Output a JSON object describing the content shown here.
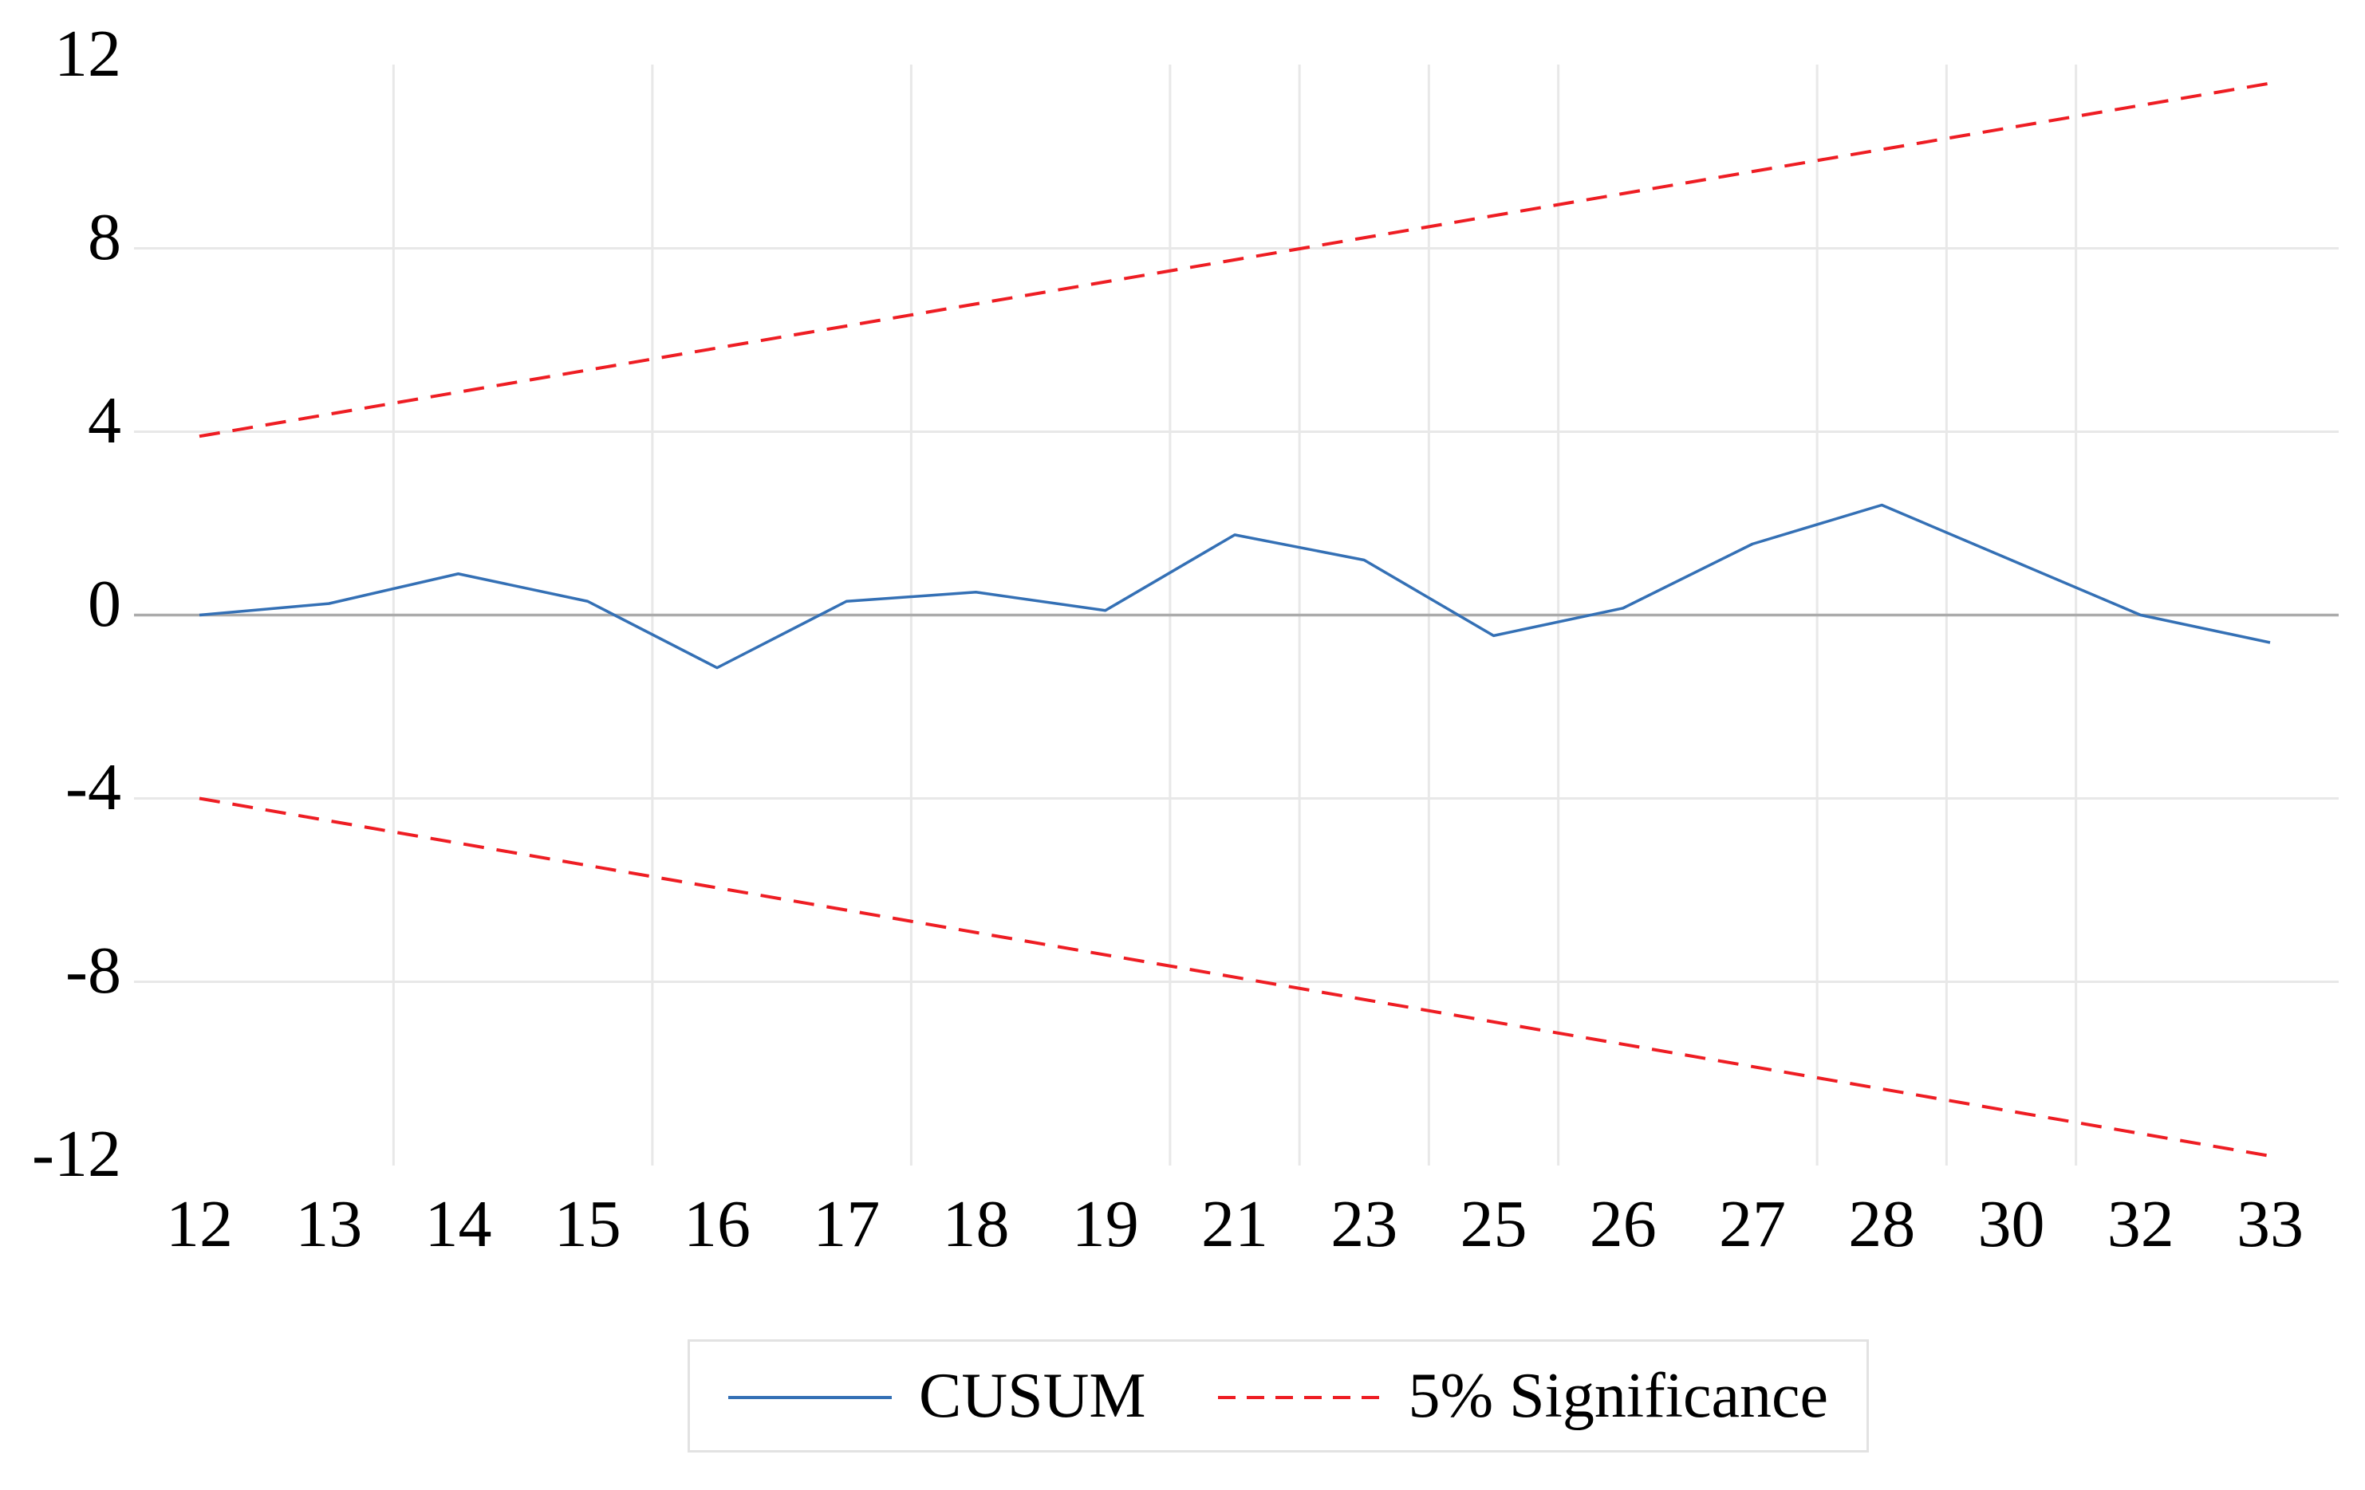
{
  "chart": {
    "y_tick_labels": [
      "12",
      "8",
      "4",
      "0",
      "-4",
      "-8",
      "-12"
    ],
    "x_tick_labels": [
      "12",
      "13",
      "14",
      "15",
      "16",
      "17",
      "18",
      "19",
      "21",
      "23",
      "25",
      "26",
      "27",
      "28",
      "30",
      "32",
      "33"
    ]
  },
  "legend": {
    "cusum_label": "CUSUM",
    "significance_label": "5% Significance"
  },
  "chart_data": {
    "type": "line",
    "title": "",
    "x_categories": [
      12,
      13,
      14,
      15,
      16,
      17,
      18,
      19,
      21,
      23,
      25,
      26,
      27,
      28,
      30,
      32,
      33
    ],
    "y_ticks": [
      12,
      8,
      4,
      0,
      -4,
      -8,
      -12
    ],
    "ylim": [
      -12,
      12
    ],
    "grid": true,
    "legend_position": "bottom-center",
    "series": [
      {
        "name": "CUSUM",
        "style": "solid",
        "color": "#3470b5",
        "values": [
          0.0,
          0.25,
          0.9,
          0.3,
          -1.15,
          0.3,
          0.5,
          0.1,
          1.75,
          1.2,
          -0.45,
          0.15,
          1.55,
          2.4,
          1.2,
          0.0,
          -0.6
        ]
      },
      {
        "name": "5% Significance upper bound",
        "style": "dashed",
        "color": "#ee1d23",
        "endpoint_values": [
          3.9,
          11.6
        ]
      },
      {
        "name": "5% Significance lower bound",
        "style": "dashed",
        "color": "#ee1d23",
        "endpoint_values": [
          -4.0,
          -11.8
        ]
      }
    ],
    "colors": {
      "cusum": "#3470b5",
      "significance": "#ee1d23",
      "gridline": "#e8e8e8",
      "zero_line": "#ababab"
    }
  }
}
